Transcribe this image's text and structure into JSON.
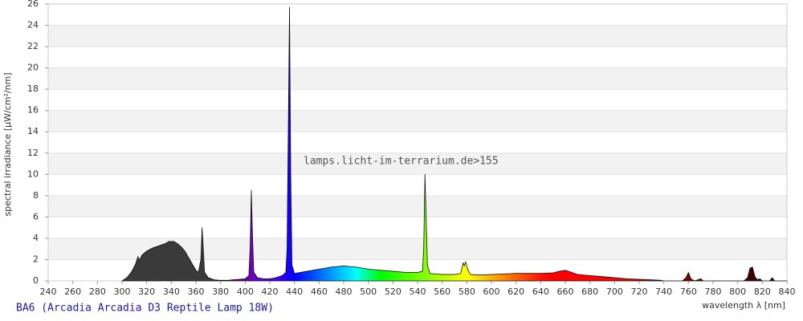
{
  "chart_data": {
    "type": "area",
    "title": "BA6 (Arcadia Arcadia D3 Reptile Lamp 18W)",
    "watermark": "lamps.licht-im-terrarium.de>155",
    "x_label": "wavelength λ [nm]",
    "y_label": "spectral irradiance [µW/cm²/nm]",
    "xlim": [
      240,
      840
    ],
    "ylim": [
      0,
      26
    ],
    "xticks": [
      240,
      260,
      280,
      300,
      320,
      340,
      360,
      380,
      400,
      420,
      440,
      460,
      480,
      500,
      520,
      540,
      560,
      580,
      600,
      620,
      640,
      660,
      680,
      700,
      720,
      740,
      760,
      780,
      800,
      820,
      840
    ],
    "yticks": [
      0,
      2,
      4,
      6,
      8,
      10,
      12,
      14,
      16,
      18,
      20,
      22,
      24,
      26
    ],
    "grid": true,
    "x": [
      300,
      304,
      308,
      311,
      313,
      314,
      316,
      320,
      325,
      330,
      335,
      338,
      342,
      345,
      348,
      351,
      354,
      357,
      360,
      362,
      364,
      365,
      366,
      367,
      370,
      375,
      380,
      385,
      390,
      395,
      400,
      403,
      404,
      405,
      406,
      407,
      410,
      415,
      420,
      425,
      430,
      433,
      434,
      435,
      436,
      437,
      438,
      440,
      450,
      460,
      470,
      480,
      490,
      500,
      510,
      520,
      530,
      540,
      544,
      545,
      546,
      547,
      548,
      550,
      560,
      570,
      575,
      577,
      578,
      579,
      581,
      583,
      590,
      600,
      620,
      640,
      650,
      655,
      660,
      665,
      670,
      680,
      690,
      700,
      710,
      720,
      730,
      738,
      740,
      755,
      758,
      760,
      762,
      765,
      770,
      772,
      805,
      808,
      810,
      812,
      814,
      816,
      818,
      820,
      826,
      828,
      830,
      840
    ],
    "values": [
      0,
      0.3,
      0.9,
      1.6,
      2.3,
      1.9,
      2.4,
      2.8,
      3.1,
      3.3,
      3.5,
      3.7,
      3.7,
      3.5,
      3.2,
      2.8,
      2.2,
      1.6,
      1.0,
      0.8,
      2.0,
      5.0,
      3.0,
      0.8,
      0.3,
      0.1,
      0.05,
      0.05,
      0.1,
      0.15,
      0.2,
      0.5,
      3,
      8.5,
      4.0,
      0.8,
      0.3,
      0.2,
      0.2,
      0.3,
      0.5,
      0.8,
      3,
      14,
      25.7,
      10,
      1.5,
      0.7,
      0.9,
      1.1,
      1.3,
      1.4,
      1.3,
      1.1,
      1.0,
      0.9,
      0.8,
      0.8,
      0.9,
      3,
      10,
      6,
      1.5,
      0.7,
      0.6,
      0.6,
      0.7,
      1.7,
      1.4,
      1.8,
      1.0,
      0.6,
      0.55,
      0.6,
      0.7,
      0.7,
      0.75,
      0.9,
      1.0,
      0.8,
      0.6,
      0.5,
      0.4,
      0.3,
      0.2,
      0.15,
      0.1,
      0.05,
      0,
      0,
      0.3,
      0.8,
      0.2,
      0,
      0.2,
      0,
      0,
      0.3,
      1.2,
      1.3,
      0.4,
      0.1,
      0.2,
      0,
      0,
      0.3,
      0,
      0
    ]
  }
}
